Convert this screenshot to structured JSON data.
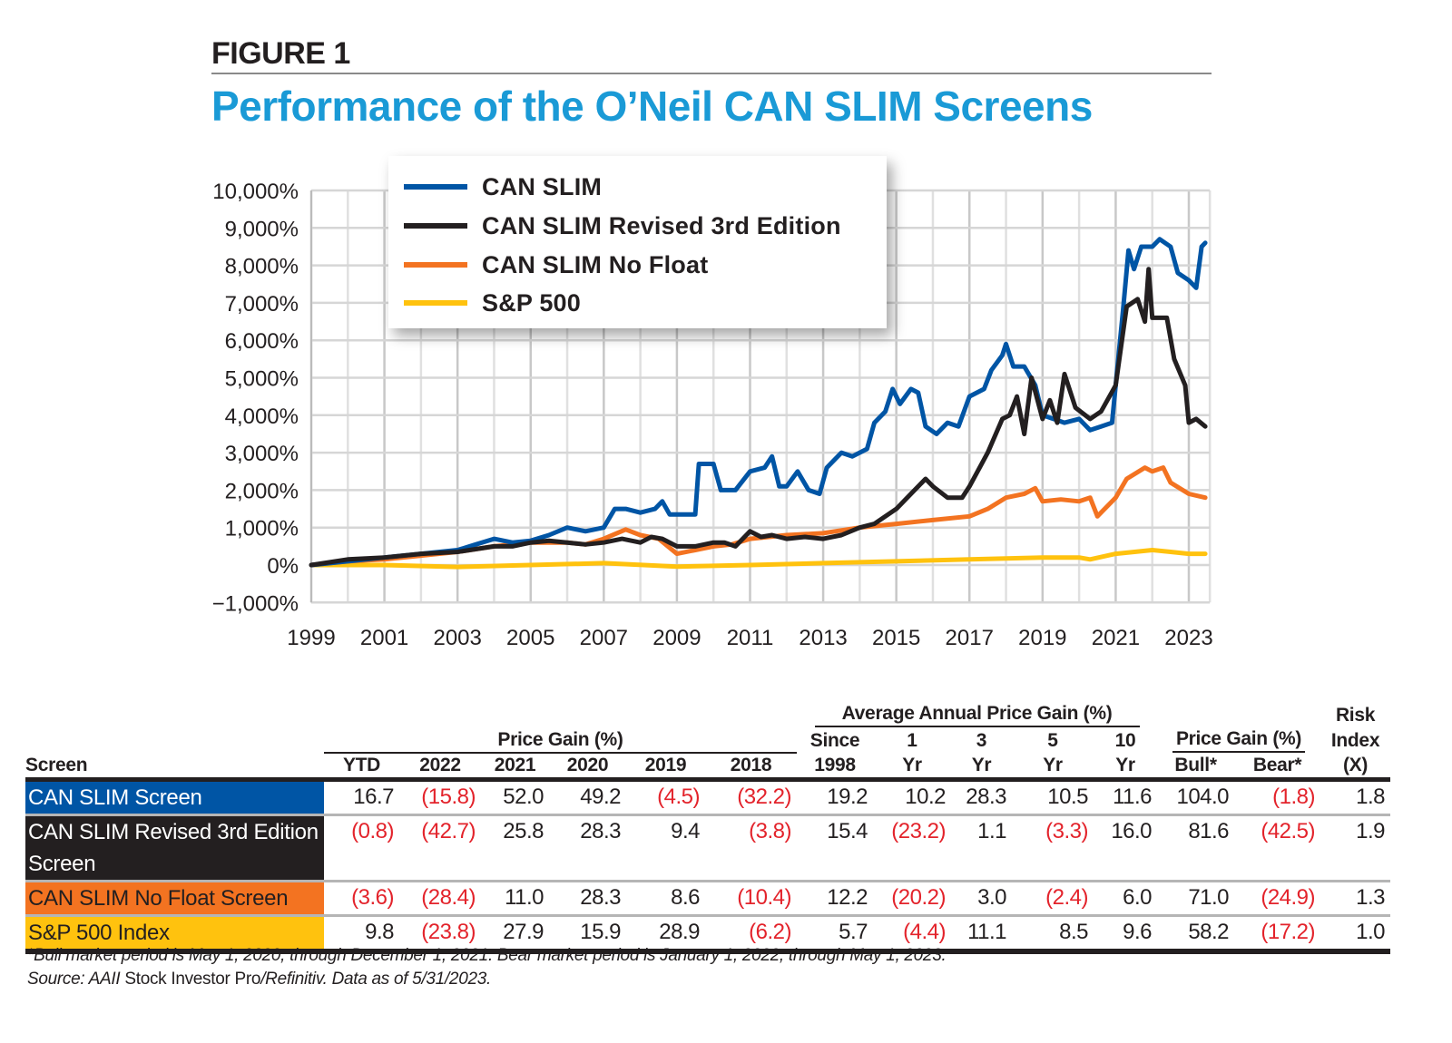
{
  "figure_label": "FIGURE 1",
  "title": "Performance of the O’Neil CAN SLIM Screens",
  "chart_data": {
    "type": "line",
    "title": "Performance of the O’Neil CAN SLIM Screens",
    "xlim": [
      1999,
      2023.5
    ],
    "ylim": [
      -1000,
      10000
    ],
    "grid": true,
    "legend_position": "top-left",
    "x_ticks": [
      1999,
      2001,
      2003,
      2005,
      2007,
      2009,
      2011,
      2013,
      2015,
      2017,
      2019,
      2021,
      2023
    ],
    "x_tick_labels": [
      "1999",
      "2001",
      "2003",
      "2005",
      "2007",
      "2009",
      "2011",
      "2013",
      "2015",
      "2017",
      "2019",
      "2021",
      "2023"
    ],
    "y_ticks": [
      -1000,
      0,
      1000,
      2000,
      3000,
      4000,
      5000,
      6000,
      7000,
      8000,
      9000,
      10000
    ],
    "y_tick_labels": [
      "−1,000%",
      "0%",
      "1,000%",
      "2,000%",
      "3,000%",
      "4,000%",
      "5,000%",
      "6,000%",
      "7,000%",
      "8,000%",
      "9,000%",
      "10,000%"
    ],
    "series": [
      {
        "name": "CAN SLIM",
        "color": "#0055a5",
        "x": [
          1999,
          2000,
          2001,
          2002,
          2003,
          2003.5,
          2004,
          2004.5,
          2005,
          2005.5,
          2006,
          2006.5,
          2007,
          2007.3,
          2007.6,
          2008,
          2008.4,
          2008.6,
          2008.8,
          2009.5,
          2009.6,
          2010,
          2010.2,
          2010.6,
          2011,
          2011.4,
          2011.6,
          2011.8,
          2012,
          2012.3,
          2012.6,
          2012.9,
          2013.1,
          2013.5,
          2013.8,
          2014.2,
          2014.4,
          2014.7,
          2014.9,
          2015.1,
          2015.4,
          2015.6,
          2015.8,
          2016.1,
          2016.4,
          2016.7,
          2017,
          2017.4,
          2017.6,
          2017.9,
          2018,
          2018.2,
          2018.5,
          2018.8,
          2019,
          2019.3,
          2019.6,
          2020,
          2020.3,
          2020.6,
          2020.9,
          2021,
          2021.2,
          2021.35,
          2021.5,
          2021.7,
          2022,
          2022.2,
          2022.5,
          2022.7,
          2023,
          2023.2,
          2023.35,
          2023.45
        ],
        "y": [
          0,
          100,
          200,
          300,
          400,
          550,
          700,
          600,
          650,
          800,
          1000,
          900,
          1000,
          1500,
          1500,
          1400,
          1500,
          1700,
          1350,
          1350,
          2700,
          2700,
          2000,
          2000,
          2500,
          2600,
          2900,
          2100,
          2100,
          2500,
          2000,
          1900,
          2600,
          3000,
          2900,
          3100,
          3800,
          4100,
          4700,
          4300,
          4700,
          4600,
          3700,
          3500,
          3800,
          3700,
          4500,
          4700,
          5200,
          5600,
          5900,
          5300,
          5300,
          4800,
          4000,
          3900,
          3800,
          3900,
          3600,
          3700,
          3800,
          4800,
          6800,
          8400,
          7900,
          8500,
          8500,
          8700,
          8500,
          7800,
          7600,
          7400,
          8500,
          8600
        ]
      },
      {
        "name": "CAN SLIM Revised 3rd Edition",
        "color": "#231f20",
        "x": [
          1999,
          2000,
          2001,
          2002,
          2003,
          2004,
          2004.5,
          2005,
          2005.5,
          2006,
          2006.5,
          2007,
          2007.5,
          2008,
          2008.3,
          2008.6,
          2009,
          2009.5,
          2010,
          2010.3,
          2010.6,
          2011,
          2011.3,
          2011.6,
          2012,
          2012.5,
          2013,
          2013.5,
          2014,
          2014.4,
          2015,
          2015.4,
          2015.8,
          2016,
          2016.4,
          2016.8,
          2017,
          2017.5,
          2017.9,
          2018.1,
          2018.3,
          2018.5,
          2018.7,
          2019,
          2019.2,
          2019.4,
          2019.6,
          2019.9,
          2020.3,
          2020.6,
          2021,
          2021.3,
          2021.6,
          2021.8,
          2021.9,
          2022,
          2022.4,
          2022.6,
          2022.9,
          2023,
          2023.2,
          2023.45
        ],
        "y": [
          0,
          150,
          200,
          300,
          350,
          500,
          500,
          600,
          650,
          600,
          550,
          600,
          700,
          600,
          750,
          700,
          500,
          500,
          600,
          600,
          500,
          900,
          750,
          800,
          700,
          750,
          700,
          800,
          1000,
          1100,
          1500,
          1900,
          2300,
          2100,
          1800,
          1800,
          2100,
          3000,
          3900,
          4000,
          4500,
          3500,
          5000,
          3900,
          4400,
          3800,
          5100,
          4200,
          3900,
          4100,
          4800,
          6900,
          7100,
          6500,
          7900,
          6600,
          6600,
          5500,
          4800,
          3800,
          3900,
          3700
        ]
      },
      {
        "name": "CAN SLIM No Float",
        "color": "#f37321",
        "x": [
          1999,
          2000,
          2001,
          2002,
          2003,
          2004,
          2005,
          2006,
          2006.5,
          2007,
          2007.6,
          2008,
          2008.5,
          2009,
          2009.5,
          2010,
          2010.5,
          2011,
          2012,
          2013,
          2014,
          2015,
          2016,
          2017,
          2017.5,
          2018,
          2018.5,
          2018.8,
          2019,
          2019.5,
          2020,
          2020.3,
          2020.5,
          2020.8,
          2021,
          2021.3,
          2021.8,
          2022,
          2022.3,
          2022.5,
          2023,
          2023.45
        ],
        "y": [
          0,
          100,
          150,
          250,
          350,
          500,
          600,
          600,
          550,
          700,
          950,
          800,
          700,
          300,
          400,
          500,
          550,
          700,
          800,
          850,
          1000,
          1100,
          1200,
          1300,
          1500,
          1800,
          1900,
          2050,
          1700,
          1750,
          1700,
          1800,
          1300,
          1600,
          1800,
          2300,
          2600,
          2500,
          2600,
          2200,
          1900,
          1800
        ]
      },
      {
        "name": "S&P 500",
        "color": "#ffc20e",
        "x": [
          1999,
          2001,
          2003,
          2007,
          2009,
          2011,
          2013,
          2015,
          2017,
          2019,
          2020,
          2020.3,
          2021,
          2022,
          2022.5,
          2023,
          2023.45
        ],
        "y": [
          0,
          0,
          -50,
          50,
          -40,
          0,
          50,
          100,
          150,
          200,
          200,
          150,
          300,
          400,
          350,
          300,
          300
        ]
      }
    ]
  },
  "table": {
    "group_headers": {
      "price_gain": "Price Gain (%)",
      "avg_annual": "Average Annual Price Gain (%)",
      "bull_bear": "Price Gain (%)",
      "risk_top": "Risk",
      "risk_mid": "Index"
    },
    "columns": [
      {
        "top": "",
        "bottom": "Screen"
      },
      {
        "top": "",
        "bottom": "YTD"
      },
      {
        "top": "",
        "bottom": "2022"
      },
      {
        "top": "",
        "bottom": "2021"
      },
      {
        "top": "",
        "bottom": "2020"
      },
      {
        "top": "",
        "bottom": "2019"
      },
      {
        "top": "",
        "bottom": "2018"
      },
      {
        "top": "Since",
        "bottom": "1998"
      },
      {
        "top": "1",
        "bottom": "Yr"
      },
      {
        "top": "3",
        "bottom": "Yr"
      },
      {
        "top": "5",
        "bottom": "Yr"
      },
      {
        "top": "10",
        "bottom": "Yr"
      },
      {
        "top": "",
        "bottom": "Bull*"
      },
      {
        "top": "",
        "bottom": "Bear*"
      },
      {
        "top": "",
        "bottom": "(X)"
      }
    ],
    "rows": [
      {
        "screen": "CAN SLIM Screen",
        "color": "#0055a5",
        "text_color": "#ffffff",
        "values": [
          "16.7",
          "(15.8)",
          "52.0",
          "49.2",
          "(4.5)",
          "(32.2)",
          "19.2",
          "10.2",
          "28.3",
          "10.5",
          "11.6",
          "104.0",
          "(1.8)",
          "1.8"
        ]
      },
      {
        "screen": "CAN SLIM Revised 3rd Edition Screen",
        "color": "#231f20",
        "text_color": "#ffffff",
        "values": [
          "(0.8)",
          "(42.7)",
          "25.8",
          "28.3",
          "9.4",
          "(3.8)",
          "15.4",
          "(23.2)",
          "1.1",
          "(3.3)",
          "16.0",
          "81.6",
          "(42.5)",
          "1.9"
        ]
      },
      {
        "screen": "CAN SLIM No Float Screen",
        "color": "#f37321",
        "text_color": "#231f20",
        "values": [
          "(3.6)",
          "(28.4)",
          "11.0",
          "28.3",
          "8.6",
          "(10.4)",
          "12.2",
          "(20.2)",
          "3.0",
          "(2.4)",
          "6.0",
          "71.0",
          "(24.9)",
          "1.3"
        ]
      },
      {
        "screen": "S&P 500 Index",
        "color": "#ffc20e",
        "text_color": "#231f20",
        "values": [
          "9.8",
          "(23.8)",
          "27.9",
          "15.9",
          "28.9",
          "(6.2)",
          "5.7",
          "(4.4)",
          "11.1",
          "8.5",
          "9.6",
          "58.2",
          "(17.2)",
          "1.0"
        ]
      }
    ]
  },
  "footnotes": {
    "bull_bear": "*Bull market period is May 1, 2020, through December 1, 2021. Bear market period is January 1, 2022, through May 1, 2023.",
    "source_prefix": "Source: AAII ",
    "source_product": "Stock Investor Pro",
    "source_suffix": "/Refinitiv. Data as of 5/31/2023."
  },
  "colors": {
    "title": "#1a9ad6",
    "negative": "#e3232b"
  }
}
